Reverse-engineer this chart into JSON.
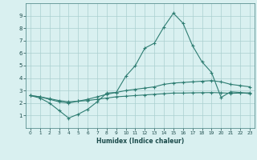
{
  "xlabel": "Humidex (Indice chaleur)",
  "x": [
    0,
    1,
    2,
    3,
    4,
    5,
    6,
    7,
    8,
    9,
    10,
    11,
    12,
    13,
    14,
    15,
    16,
    17,
    18,
    19,
    20,
    21,
    22,
    23
  ],
  "line1": [
    2.6,
    2.4,
    2.0,
    1.4,
    0.8,
    1.1,
    1.5,
    2.1,
    2.8,
    2.85,
    4.15,
    5.0,
    6.4,
    6.8,
    8.1,
    9.2,
    8.4,
    6.6,
    5.3,
    4.45,
    2.45,
    2.9,
    2.85,
    2.75
  ],
  "line2": [
    2.6,
    2.5,
    2.3,
    2.1,
    2.0,
    2.15,
    2.3,
    2.5,
    2.7,
    2.85,
    3.0,
    3.1,
    3.2,
    3.3,
    3.5,
    3.6,
    3.65,
    3.7,
    3.75,
    3.8,
    3.7,
    3.5,
    3.4,
    3.3
  ],
  "line3": [
    2.6,
    2.5,
    2.35,
    2.2,
    2.1,
    2.15,
    2.2,
    2.3,
    2.4,
    2.5,
    2.55,
    2.6,
    2.65,
    2.7,
    2.75,
    2.8,
    2.8,
    2.82,
    2.83,
    2.84,
    2.82,
    2.78,
    2.8,
    2.82
  ],
  "line_color": "#2e7d72",
  "background_color": "#d9f0f0",
  "grid_color": "#aacfcf",
  "ylim": [
    0,
    10
  ],
  "xlim": [
    -0.5,
    23.5
  ],
  "yticks": [
    1,
    2,
    3,
    4,
    5,
    6,
    7,
    8,
    9
  ],
  "xticks": [
    0,
    1,
    2,
    3,
    4,
    5,
    6,
    7,
    8,
    9,
    10,
    11,
    12,
    13,
    14,
    15,
    16,
    17,
    18,
    19,
    20,
    21,
    22,
    23
  ]
}
